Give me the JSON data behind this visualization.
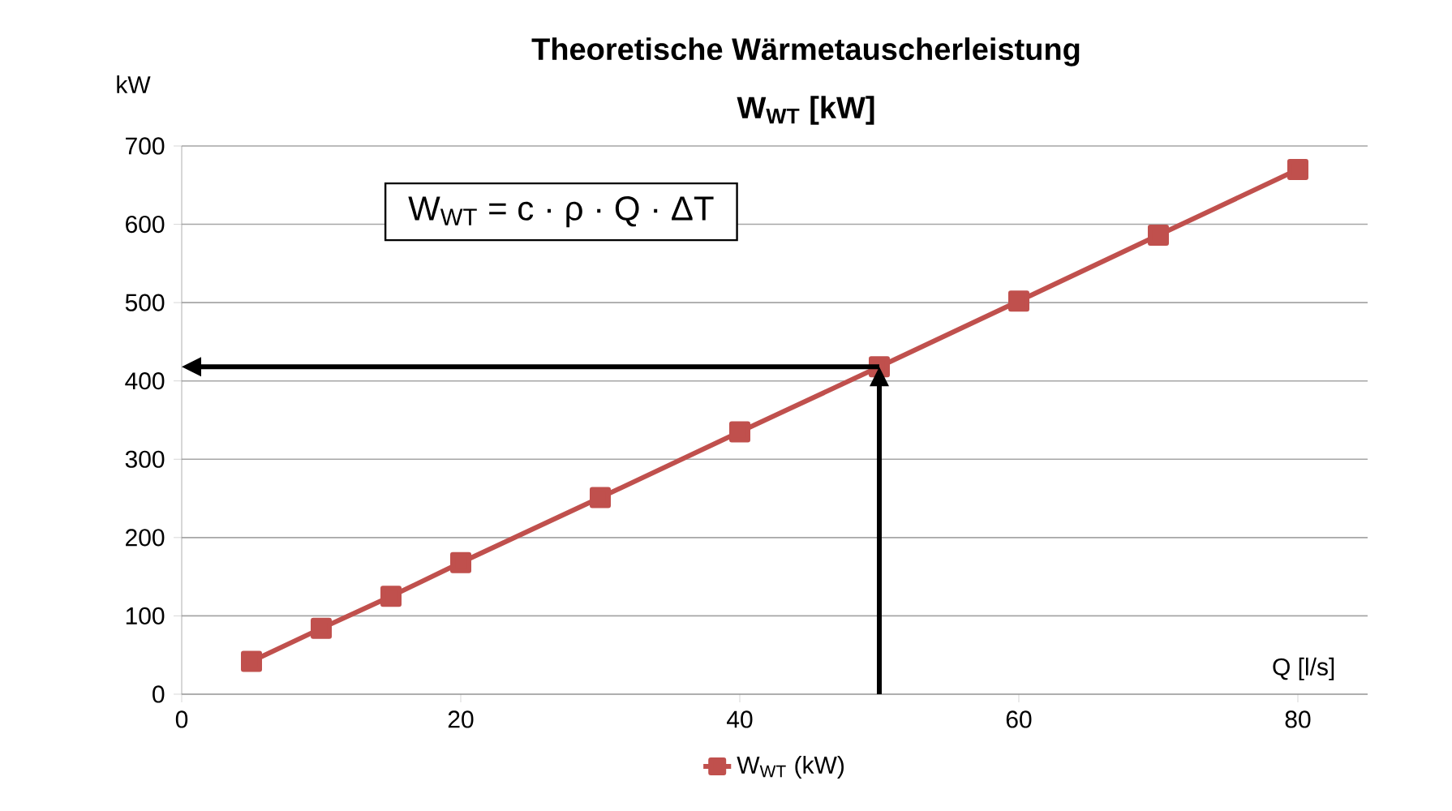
{
  "chart_data": {
    "type": "line",
    "title": "Theoretische Wärmetauscherleistung",
    "subtitle": "W$_{WT}$ [kW]",
    "xlabel": "Q [l/s]",
    "ylabel": "kW",
    "x": [
      5,
      10,
      15,
      20,
      30,
      40,
      50,
      60,
      70,
      80
    ],
    "series": [
      {
        "name": "W$_{WT}$ (kW)",
        "color": "#c0504d",
        "values": [
          42,
          84,
          125,
          168,
          251,
          335,
          418,
          502,
          586,
          670
        ]
      }
    ],
    "xlim": [
      0,
      85
    ],
    "xticks": [
      0,
      20,
      40,
      60,
      80
    ],
    "ylim": [
      0,
      700
    ],
    "yticks": [
      0,
      100,
      200,
      300,
      400,
      500,
      600,
      700
    ],
    "grid": "y",
    "legend": "bottom",
    "marker": "square",
    "line_style": "solid",
    "annotations": [
      "W$_{WT}$ = c · ρ · Q ·  ΔT"
    ]
  }
}
